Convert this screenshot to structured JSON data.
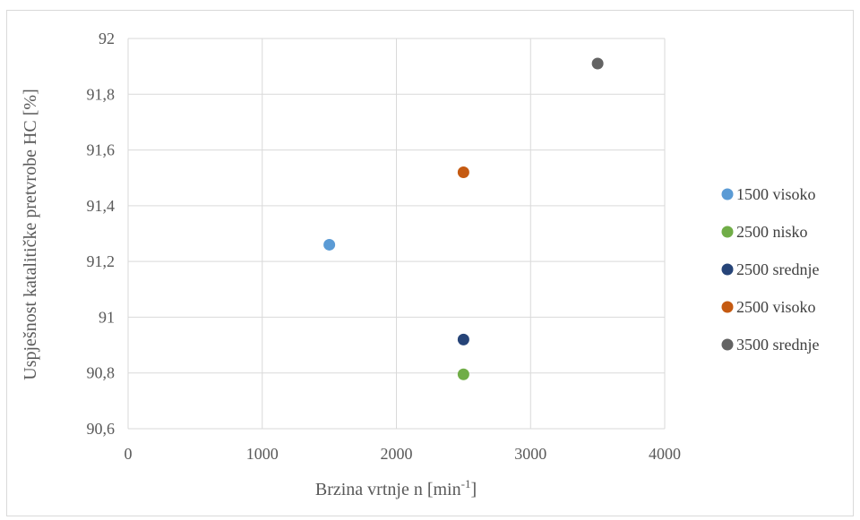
{
  "chart_data": {
    "type": "scatter",
    "title": "",
    "xlabel": "Brzina vrtnje n [min",
    "xlabel_superscript": "-1",
    "xlabel_suffix": "]",
    "ylabel": "Uspješnost katalitičke pretvrobe HC [%]",
    "xlim": [
      0,
      4000
    ],
    "ylim": [
      90.6,
      92
    ],
    "x_ticks": [
      "0",
      "1000",
      "2000",
      "3000",
      "4000"
    ],
    "y_ticks": [
      "90,6",
      "90,8",
      "91",
      "91,2",
      "91,4",
      "91,6",
      "91,8",
      "92"
    ],
    "grid": true,
    "legend_position": "right",
    "series": [
      {
        "name": "1500 visoko",
        "color": "#5b9bd5",
        "points": [
          {
            "x": 1500,
            "y": 91.26
          }
        ]
      },
      {
        "name": "2500 nisko",
        "color": "#70ad47",
        "points": [
          {
            "x": 2500,
            "y": 90.795
          }
        ]
      },
      {
        "name": "2500 srednje",
        "color": "#264478",
        "points": [
          {
            "x": 2500,
            "y": 90.92
          }
        ]
      },
      {
        "name": "2500 visoko",
        "color": "#c55a11",
        "points": [
          {
            "x": 2500,
            "y": 91.52
          }
        ]
      },
      {
        "name": "3500 srednje",
        "color": "#636363",
        "points": [
          {
            "x": 3500,
            "y": 91.91
          }
        ]
      }
    ]
  }
}
